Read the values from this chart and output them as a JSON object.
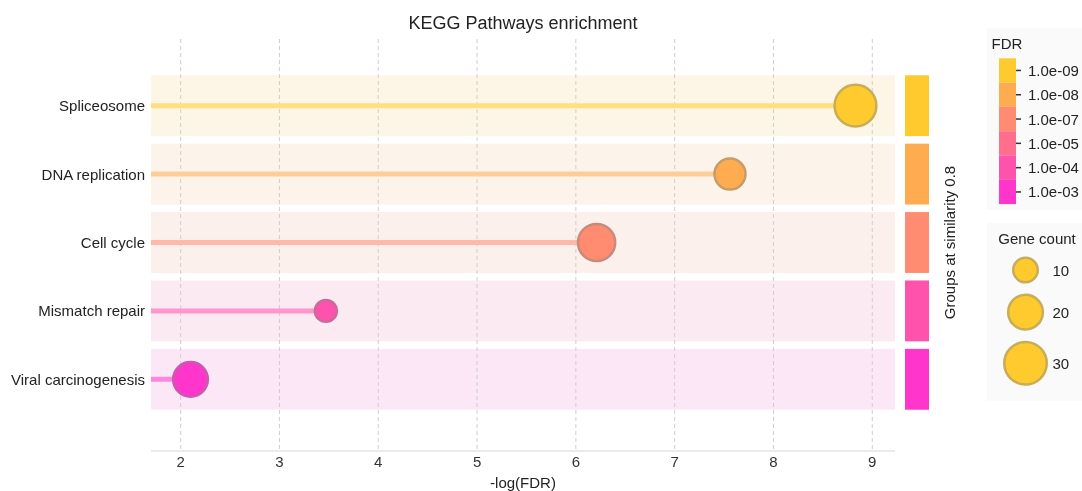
{
  "chart_data": {
    "type": "lollipop",
    "orientation": "horizontal",
    "title": "KEGG Pathways enrichment",
    "xlabel": "-log(FDR)",
    "y2label": "Groups at similarity 0.8",
    "categories": [
      "Spliceosome",
      "DNA replication",
      "Cell cycle",
      "Mismatch repair",
      "Viral carcinogenesis"
    ],
    "series": [
      {
        "name": "1.0e-09",
        "color": "#ffca2e",
        "values": [
          8.83,
          null,
          null,
          null,
          null
        ],
        "sizes": [
          29,
          null,
          null,
          null,
          null
        ]
      },
      {
        "name": "1.0e-08",
        "color": "#ffab50",
        "values": [
          null,
          7.56,
          null,
          null,
          null
        ],
        "sizes": [
          null,
          16,
          null,
          null,
          null
        ]
      },
      {
        "name": "1.0e-07",
        "color": "#ff8b70",
        "values": [
          null,
          null,
          6.21,
          null,
          null
        ],
        "sizes": [
          null,
          null,
          23,
          null,
          null
        ]
      },
      {
        "name": "1.0e-05",
        "color": "#ff6f8c",
        "values": [
          null,
          null,
          null,
          null,
          null
        ]
      },
      {
        "name": "1.0e-04",
        "color": "#ff52ac",
        "values": [
          null,
          null,
          null,
          3.47,
          null
        ],
        "sizes": [
          null,
          null,
          null,
          8,
          null
        ]
      },
      {
        "name": "1.0e-03",
        "color": "#ff35cc",
        "values": [
          null,
          null,
          null,
          null,
          2.1
        ],
        "sizes": [
          null,
          null,
          null,
          null,
          20
        ]
      }
    ],
    "bands": [
      {
        "axis": "y",
        "from": "Spliceosome",
        "to": "Spliceosome",
        "color": "#fdf6e7"
      },
      {
        "axis": "y",
        "from": "DNA replication",
        "to": "DNA replication",
        "color": "#fcf3eb"
      },
      {
        "axis": "y",
        "from": "Cell cycle",
        "to": "Cell cycle",
        "color": "#fbf0ec"
      },
      {
        "axis": "y",
        "from": "Mismatch repair",
        "to": "Mismatch repair",
        "color": "#fbeaf1"
      },
      {
        "axis": "y",
        "from": "Viral carcinogenesis",
        "to": "Viral carcinogenesis",
        "color": "#fbe7f6"
      }
    ],
    "legend": "top right",
    "legend_title": "FDR",
    "size_legend": [
      10,
      20,
      30
    ],
    "annotations": [
      "Gene count"
    ],
    "xlim": [
      1.7,
      9.23
    ],
    "xticks": [
      2,
      3,
      4,
      5,
      6,
      7,
      8,
      9
    ],
    "grid": "x",
    "marker": "circle"
  }
}
